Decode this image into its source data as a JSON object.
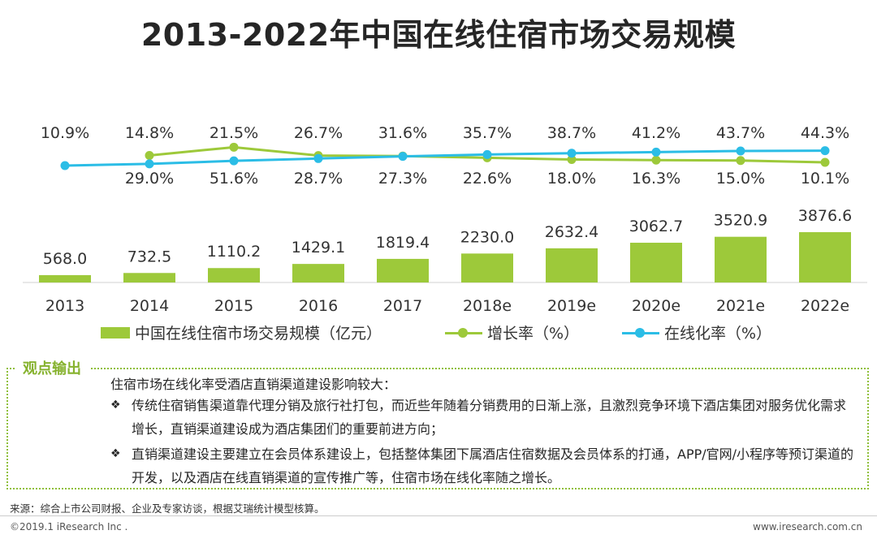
{
  "title": "2013-2022年中国在线住宿市场交易规模",
  "chart_data": {
    "type": "bar",
    "categories": [
      "2013",
      "2014",
      "2015",
      "2016",
      "2017",
      "2018e",
      "2019e",
      "2020e",
      "2021e",
      "2022e"
    ],
    "series": [
      {
        "name": "中国在线住宿市场交易规模（亿元）",
        "type": "bar",
        "color": "#9dc93a",
        "values": [
          568.0,
          732.5,
          1110.2,
          1429.1,
          1819.4,
          2230.0,
          2632.4,
          3062.7,
          3520.9,
          3876.6
        ],
        "labels": [
          "568.0",
          "732.5",
          "1110.2",
          "1429.1",
          "1819.4",
          "2230.0",
          "2632.4",
          "3062.7",
          "3520.9",
          "3876.6"
        ]
      },
      {
        "name": "增长率（%）",
        "type": "line",
        "color": "#9dc93a",
        "values": [
          null,
          29.0,
          51.6,
          28.7,
          27.3,
          22.6,
          18.0,
          16.3,
          15.0,
          10.1
        ],
        "labels": [
          "",
          "29.0%",
          "51.6%",
          "28.7%",
          "27.3%",
          "22.6%",
          "18.0%",
          "16.3%",
          "15.0%",
          "10.1%"
        ]
      },
      {
        "name": "在线化率（%）",
        "type": "line",
        "color": "#2bbde6",
        "values": [
          10.9,
          14.8,
          21.5,
          26.7,
          31.6,
          35.7,
          38.7,
          41.2,
          43.7,
          44.3
        ],
        "labels": [
          "10.9%",
          "14.8%",
          "21.5%",
          "26.7%",
          "31.6%",
          "35.7%",
          "38.7%",
          "41.2%",
          "43.7%",
          "44.3%"
        ]
      }
    ],
    "legend_position": "bottom"
  },
  "legend": {
    "bar": "中国在线住宿市场交易规模（亿元）",
    "growth": "增长率（%）",
    "online": "在线化率（%）"
  },
  "viewpoint": {
    "tag": "观点输出",
    "intro": "住宿市场在线化率受酒店直销渠道建设影响较大：",
    "bullet_mark": "❖",
    "bullets": [
      "传统住宿销售渠道靠代理分销及旅行社打包，而近些年随着分销费用的日渐上涨，且激烈竞争环境下酒店集团对服务优化需求增长，直销渠道建设成为酒店集团们的重要前进方向；",
      "直销渠道建设主要建立在会员体系建设上，包括整体集团下属酒店住宿数据及会员体系的打通，APP/官网/小程序等预订渠道的开发，以及酒店在线直销渠道的宣传推广等，住宿市场在线化率随之增长。"
    ]
  },
  "footer": {
    "source": "来源：综合上市公司财报、企业及专家访谈，根据艾瑞统计模型核算。",
    "copyright": "©2019.1 iResearch Inc .",
    "website": "www.iresearch.com.cn"
  }
}
